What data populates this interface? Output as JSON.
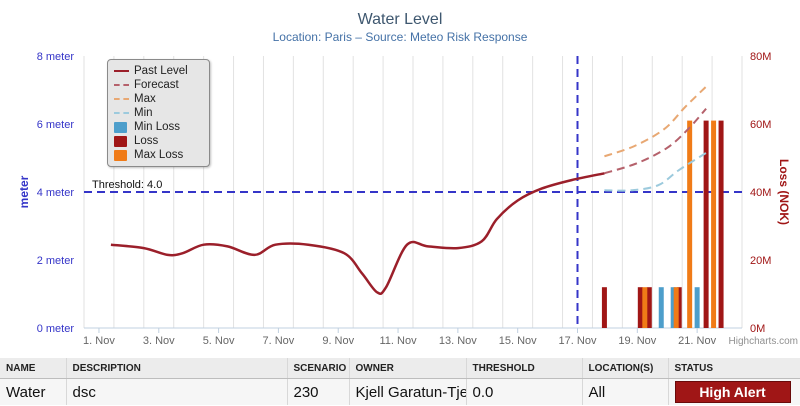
{
  "chart_data": {
    "type": "line",
    "title": "Water Level",
    "subtitle": "Location: Paris – Source: Meteo Risk Response",
    "x_categories": [
      "1. Nov",
      "3. Nov",
      "5. Nov",
      "7. Nov",
      "9. Nov",
      "11. Nov",
      "13. Nov",
      "15. Nov",
      "17. Nov",
      "19. Nov",
      "21. Nov"
    ],
    "y_left": {
      "label": "meter",
      "ticks": [
        "0 meter",
        "2 meter",
        "4 meter",
        "6 meter",
        "8 meter"
      ],
      "range": [
        0,
        8
      ]
    },
    "y_right": {
      "label": "Loss (NOK)",
      "ticks": [
        "0M",
        "20M",
        "40M",
        "60M",
        "80M"
      ],
      "range": [
        0,
        80
      ]
    },
    "threshold": {
      "label": "Threshold: 4.0",
      "value": 4.0
    },
    "current_date": "17. Nov",
    "series": [
      {
        "name": "Past Level",
        "style": "solid",
        "color": "#9b1f2a",
        "points": [
          [
            0.4,
            2.45
          ],
          [
            1.5,
            2.35
          ],
          [
            2.3,
            2.15
          ],
          [
            2.8,
            2.2
          ],
          [
            3.5,
            2.45
          ],
          [
            4.3,
            2.4
          ],
          [
            5.2,
            2.15
          ],
          [
            5.9,
            2.45
          ],
          [
            7.0,
            2.45
          ],
          [
            8.2,
            2.2
          ],
          [
            8.8,
            1.6
          ],
          [
            9.3,
            1.05
          ],
          [
            9.6,
            1.2
          ],
          [
            10.3,
            2.45
          ],
          [
            11.0,
            2.4
          ],
          [
            12.0,
            2.35
          ],
          [
            12.8,
            2.55
          ],
          [
            13.3,
            3.2
          ],
          [
            14.0,
            3.75
          ],
          [
            14.8,
            4.1
          ],
          [
            15.8,
            4.35
          ],
          [
            16.9,
            4.55
          ]
        ]
      },
      {
        "name": "Forecast",
        "style": "dash",
        "color": "#b5616b",
        "points": [
          [
            16.9,
            4.55
          ],
          [
            18.0,
            4.85
          ],
          [
            19.0,
            5.3
          ],
          [
            19.7,
            5.85
          ],
          [
            20.3,
            6.45
          ]
        ]
      },
      {
        "name": "Max",
        "style": "dash",
        "color": "#e8a873",
        "points": [
          [
            16.9,
            5.05
          ],
          [
            17.9,
            5.35
          ],
          [
            18.9,
            5.85
          ],
          [
            19.6,
            6.5
          ],
          [
            20.3,
            7.1
          ]
        ]
      },
      {
        "name": "Min",
        "style": "dash",
        "color": "#9ccadd",
        "points": [
          [
            16.9,
            4.05
          ],
          [
            17.8,
            4.05
          ],
          [
            18.7,
            4.2
          ],
          [
            19.4,
            4.65
          ],
          [
            20.3,
            5.15
          ]
        ]
      },
      {
        "name": "Min Loss",
        "type": "column",
        "color": "#4d9ecb",
        "values": [
          [
            18.8,
            12
          ],
          [
            19.2,
            12
          ],
          [
            20.0,
            12
          ]
        ]
      },
      {
        "name": "Loss",
        "type": "column",
        "color": "#a01616",
        "values": [
          [
            16.9,
            12
          ],
          [
            18.1,
            12
          ],
          [
            18.4,
            12
          ],
          [
            19.4,
            12
          ],
          [
            20.3,
            61
          ],
          [
            20.8,
            61
          ]
        ]
      },
      {
        "name": "Max Loss",
        "type": "column",
        "color": "#f07b17",
        "values": [
          [
            18.25,
            12
          ],
          [
            19.3,
            12
          ],
          [
            19.75,
            61
          ],
          [
            20.55,
            61
          ]
        ]
      }
    ]
  },
  "credits": "Highcharts.com",
  "table": {
    "headers": [
      "NAME",
      "DESCRIPTION",
      "SCENARIO I",
      "OWNER",
      "THRESHOLD",
      "LOCATION(S)",
      "STATUS"
    ],
    "row": {
      "name": "Water",
      "description": "dsc",
      "scenario": "230",
      "owner": "Kjell Garatun-Tje",
      "threshold": "0.0",
      "location": "All",
      "status": "High Alert"
    }
  }
}
